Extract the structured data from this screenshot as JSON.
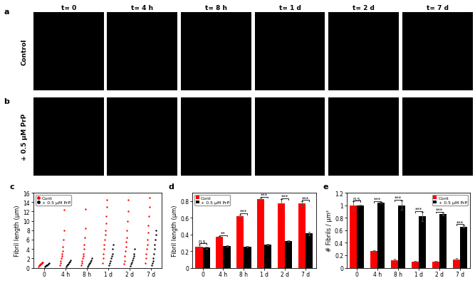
{
  "image_panels": {
    "panel_labels": [
      "a",
      "b"
    ],
    "time_labels": [
      "t= 0",
      "t= 4 h",
      "t= 8 h",
      "t= 1 d",
      "t= 2 d",
      "t= 7 d"
    ],
    "row_labels": [
      "Control",
      "+ 0.5 μM PrP"
    ]
  },
  "chart_data": [
    {
      "type": "scatter",
      "panel_label": "c",
      "categories": [
        "0",
        "4 h",
        "8 h",
        "1 d",
        "2 d",
        "7 d"
      ],
      "y_label": "Fibril length (μm)",
      "ylim": [
        0,
        16
      ],
      "yticks": [
        0,
        2,
        4,
        6,
        8,
        10,
        12,
        14,
        16
      ],
      "legend": "upper left",
      "series": [
        {
          "name": "Cont",
          "color": "#ff0000",
          "marker": "o",
          "values": [
            [
              0.3,
              0.5,
              0.6,
              0.7,
              0.8,
              0.9,
              1.0,
              1.1,
              1.2
            ],
            [
              0.5,
              1.0,
              1.5,
              2.0,
              2.5,
              3.0,
              3.5,
              4.5,
              6.0,
              8.0,
              12.3
            ],
            [
              0.5,
              1.0,
              1.5,
              2.0,
              2.5,
              3.0,
              4.0,
              5.0,
              6.5,
              8.5,
              12.5
            ],
            [
              1.0,
              2.0,
              3.0,
              4.0,
              5.0,
              6.0,
              7.0,
              8.0,
              9.5,
              11.0,
              13.0,
              14.5
            ],
            [
              0.8,
              1.5,
              2.5,
              3.5,
              4.5,
              5.5,
              6.5,
              8.0,
              10.0,
              12.0,
              14.5
            ],
            [
              1.0,
              2.0,
              3.0,
              4.0,
              5.0,
              6.0,
              7.5,
              9.0,
              11.0,
              13.0,
              15.0
            ]
          ]
        },
        {
          "name": "+ 0.5 μM PrP",
          "color": "#000000",
          "marker": "o",
          "values": [
            [
              0.2,
              0.4,
              0.5,
              0.6,
              0.7,
              0.8,
              1.0
            ],
            [
              0.3,
              0.5,
              0.7,
              0.9,
              1.1,
              1.3,
              1.6
            ],
            [
              0.3,
              0.5,
              0.8,
              1.0,
              1.3,
              1.6,
              2.0
            ],
            [
              0.5,
              1.0,
              1.5,
              2.0,
              2.5,
              3.0,
              4.0,
              5.0
            ],
            [
              0.4,
              0.8,
              1.2,
              1.6,
              2.0,
              2.5,
              3.0,
              4.0
            ],
            [
              0.5,
              1.0,
              1.5,
              2.0,
              3.0,
              4.0,
              5.0,
              6.0,
              7.0,
              8.0
            ]
          ]
        }
      ]
    },
    {
      "type": "bar",
      "panel_label": "d",
      "categories": [
        "0",
        "4 h",
        "8 h",
        "1 d",
        "2 d",
        "7 d"
      ],
      "y_label": "Fibril length (μm)",
      "ylim": [
        0,
        0.9
      ],
      "yticks": [
        0,
        0.2,
        0.4,
        0.6,
        0.8
      ],
      "legend": "upper left",
      "series": [
        {
          "name": "Cont",
          "color": "#ff0000",
          "values": [
            0.25,
            0.37,
            0.62,
            0.82,
            0.77,
            0.77
          ],
          "errors": [
            0.03,
            0.01,
            0.02,
            0.02,
            0.05,
            0.03
          ]
        },
        {
          "name": "+ 0.5 μM PrP",
          "color": "#000000",
          "values": [
            0.24,
            0.26,
            0.25,
            0.28,
            0.32,
            0.41
          ],
          "errors": [
            0.01,
            0.01,
            0.01,
            0.01,
            0.01,
            0.02
          ]
        }
      ],
      "significance": [
        "n.s.",
        "**",
        "***",
        "***",
        "***",
        "***"
      ]
    },
    {
      "type": "bar",
      "panel_label": "e",
      "categories": [
        "0",
        "4 h",
        "8 h",
        "1 d",
        "2 d",
        "7 d"
      ],
      "y_label": "# Fibrils / μm²",
      "ylim": [
        0,
        1.2
      ],
      "yticks": [
        0,
        0.2,
        0.4,
        0.6,
        0.8,
        1,
        1.2
      ],
      "legend": "upper right",
      "series": [
        {
          "name": "Cont",
          "color": "#ff0000",
          "values": [
            0.99,
            0.27,
            0.12,
            0.1,
            0.1,
            0.13
          ],
          "errors": [
            0.07,
            0.01,
            0.02,
            0.01,
            0.01,
            0.02
          ]
        },
        {
          "name": "+ 0.5 μM PrP",
          "color": "#000000",
          "values": [
            1.0,
            1.04,
            1.0,
            0.82,
            0.86,
            0.66
          ],
          "errors": [
            0.01,
            0.01,
            0.07,
            0.07,
            0.02,
            0.02
          ]
        }
      ],
      "significance": [
        "n.s.",
        "***",
        "***",
        "***",
        "***",
        "***"
      ]
    }
  ]
}
